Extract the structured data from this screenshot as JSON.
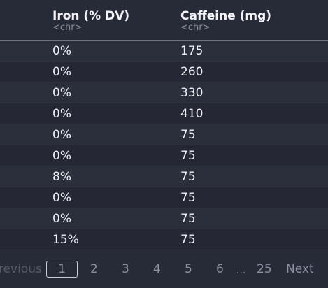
{
  "table": {
    "columns": [
      {
        "name": "Iron (% DV)",
        "type": "<chr>"
      },
      {
        "name": "Caffeine (mg)",
        "type": "<chr>"
      }
    ],
    "rows": [
      [
        "0%",
        "175"
      ],
      [
        "0%",
        "260"
      ],
      [
        "0%",
        "330"
      ],
      [
        "0%",
        "410"
      ],
      [
        "0%",
        "75"
      ],
      [
        "0%",
        "75"
      ],
      [
        "8%",
        "75"
      ],
      [
        "0%",
        "75"
      ],
      [
        "0%",
        "75"
      ],
      [
        "15%",
        "75"
      ]
    ]
  },
  "pagination": {
    "previous_label": "Previous",
    "current_page": "1",
    "pages": [
      "2",
      "3",
      "4",
      "5",
      "6"
    ],
    "ellipsis": "...",
    "last_page": "25",
    "next_label": "Next"
  }
}
